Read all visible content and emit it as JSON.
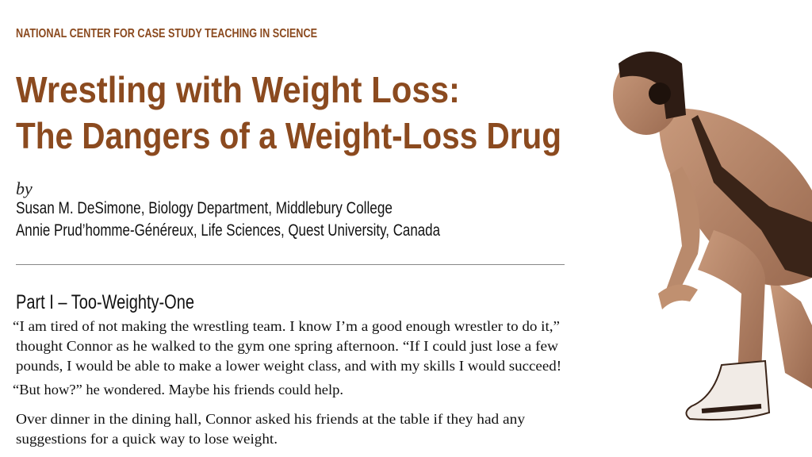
{
  "header": {
    "organization": "NATIONAL CENTER FOR CASE STUDY TEACHING IN SCIENCE"
  },
  "title": {
    "line1": "Wrestling with Weight Loss:",
    "line2": "The Dangers of a Weight-Loss Drug"
  },
  "byline": {
    "by": "by",
    "authors": [
      "Susan M. DeSimone, Biology Department, Middlebury College",
      "Annie Prud’homme-Généreux, Life Sciences, Quest University, Canada"
    ]
  },
  "section": {
    "heading": "Part I – Too-Weighty-One",
    "paragraphs": [
      [
        "“I am tired of not making the wrestling team. I know I’m a good enough wrestler to do it,”",
        "thought Connor as he walked to the gym one spring afternoon. “If I could just lose a few",
        "pounds, I would be able to make a lower weight class, and with my skills I would succeed!"
      ],
      [
        "“But how?” he wondered. Maybe his friends could help."
      ],
      [
        "Over dinner in the dining hall, Connor asked his friends at the table if they had any",
        "suggestions for a quick way to lose weight."
      ]
    ]
  },
  "image": {
    "subject": "wrestler-photo",
    "tint": "#b07a5a"
  },
  "colors": {
    "accent": "#8b4a1f"
  }
}
